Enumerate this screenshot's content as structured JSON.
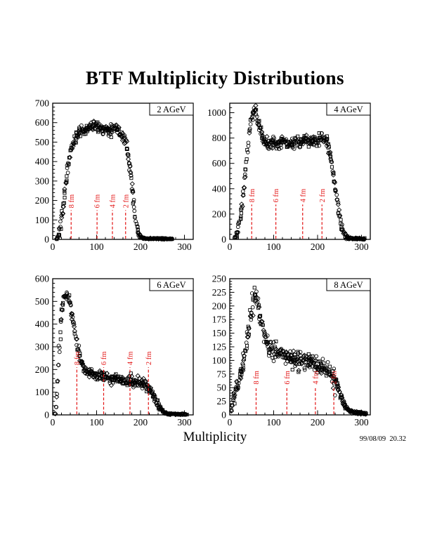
{
  "page": {
    "title": "BTF Multiplicity Distributions",
    "x_axis_label": "Multiplicity",
    "timestamp": "99/08/09  20.32"
  },
  "colors": {
    "marker": "#000000",
    "frame": "#000000",
    "impact_line": "#e31414",
    "background": "#ffffff"
  },
  "chart_data": {
    "type": "scatter",
    "shared_xlabel": "Multiplicity",
    "marker_styles": [
      "circle",
      "square",
      "diamond"
    ],
    "panels": [
      {
        "label": "2 AGeV",
        "position": "top-left",
        "xlim": [
          0,
          320
        ],
        "x_ticks": [
          0,
          100,
          200,
          300
        ],
        "x_minor_step": 20,
        "ylim": [
          0,
          700
        ],
        "y_ticks": [
          0,
          100,
          200,
          300,
          400,
          500,
          600,
          700
        ],
        "y_minor_step": 20,
        "impact_parameter_lines": [
          {
            "label": "8 fm",
            "x": 42
          },
          {
            "label": "6 fm",
            "x": 101
          },
          {
            "label": "4 fm",
            "x": 136
          },
          {
            "label": "2 fm",
            "x": 166
          }
        ],
        "impact_line_top_y": 150,
        "scatter_sigma_y": 13,
        "seed": 7,
        "profile": [
          [
            10,
            4
          ],
          [
            14,
            20
          ],
          [
            18,
            70
          ],
          [
            22,
            140
          ],
          [
            26,
            215
          ],
          [
            30,
            290
          ],
          [
            34,
            360
          ],
          [
            38,
            420
          ],
          [
            42,
            460
          ],
          [
            46,
            490
          ],
          [
            50,
            510
          ],
          [
            55,
            530
          ],
          [
            60,
            548
          ],
          [
            66,
            558
          ],
          [
            72,
            566
          ],
          [
            78,
            572
          ],
          [
            84,
            578
          ],
          [
            90,
            585
          ],
          [
            96,
            595
          ],
          [
            100,
            585
          ],
          [
            106,
            575
          ],
          [
            112,
            568
          ],
          [
            118,
            562
          ],
          [
            124,
            566
          ],
          [
            130,
            560
          ],
          [
            136,
            565
          ],
          [
            142,
            570
          ],
          [
            148,
            562
          ],
          [
            154,
            548
          ],
          [
            160,
            532
          ],
          [
            164,
            510
          ],
          [
            168,
            478
          ],
          [
            172,
            430
          ],
          [
            176,
            365
          ],
          [
            180,
            280
          ],
          [
            184,
            195
          ],
          [
            188,
            120
          ],
          [
            192,
            65
          ],
          [
            196,
            32
          ],
          [
            200,
            14
          ],
          [
            205,
            7
          ],
          [
            212,
            5
          ],
          [
            222,
            4
          ],
          [
            232,
            4
          ],
          [
            242,
            3
          ],
          [
            252,
            3
          ],
          [
            262,
            2
          ],
          [
            272,
            2
          ]
        ]
      },
      {
        "label": "4 AGeV",
        "position": "top-right",
        "xlim": [
          0,
          320
        ],
        "x_ticks": [
          0,
          100,
          200,
          300
        ],
        "x_minor_step": 20,
        "ylim": [
          0,
          1075
        ],
        "y_ticks": [
          0,
          200,
          400,
          600,
          800,
          1000
        ],
        "y_minor_step": 40,
        "impact_parameter_lines": [
          {
            "label": "8 fm",
            "x": 50
          },
          {
            "label": "6 fm",
            "x": 105
          },
          {
            "label": "4 fm",
            "x": 166
          },
          {
            "label": "2 fm",
            "x": 210
          }
        ],
        "impact_line_top_y": 275,
        "scatter_sigma_y": 22,
        "seed": 13,
        "profile": [
          [
            12,
            8
          ],
          [
            16,
            35
          ],
          [
            20,
            90
          ],
          [
            24,
            170
          ],
          [
            28,
            270
          ],
          [
            32,
            395
          ],
          [
            36,
            540
          ],
          [
            40,
            690
          ],
          [
            44,
            820
          ],
          [
            48,
            925
          ],
          [
            52,
            985
          ],
          [
            55,
            1010
          ],
          [
            58,
            1015
          ],
          [
            61,
            985
          ],
          [
            64,
            935
          ],
          [
            68,
            880
          ],
          [
            72,
            840
          ],
          [
            76,
            805
          ],
          [
            80,
            780
          ],
          [
            85,
            760
          ],
          [
            90,
            752
          ],
          [
            95,
            765
          ],
          [
            100,
            775
          ],
          [
            105,
            760
          ],
          [
            110,
            748
          ],
          [
            115,
            765
          ],
          [
            120,
            782
          ],
          [
            125,
            770
          ],
          [
            130,
            752
          ],
          [
            135,
            742
          ],
          [
            140,
            755
          ],
          [
            145,
            772
          ],
          [
            150,
            782
          ],
          [
            155,
            775
          ],
          [
            160,
            762
          ],
          [
            165,
            775
          ],
          [
            170,
            792
          ],
          [
            175,
            785
          ],
          [
            180,
            772
          ],
          [
            185,
            765
          ],
          [
            190,
            762
          ],
          [
            195,
            775
          ],
          [
            200,
            782
          ],
          [
            205,
            792
          ],
          [
            210,
            802
          ],
          [
            214,
            810
          ],
          [
            218,
            798
          ],
          [
            222,
            768
          ],
          [
            226,
            718
          ],
          [
            230,
            648
          ],
          [
            234,
            558
          ],
          [
            238,
            458
          ],
          [
            242,
            355
          ],
          [
            246,
            255
          ],
          [
            250,
            172
          ],
          [
            254,
            105
          ],
          [
            258,
            58
          ],
          [
            262,
            32
          ],
          [
            266,
            18
          ],
          [
            270,
            11
          ],
          [
            276,
            7
          ],
          [
            284,
            5
          ],
          [
            294,
            4
          ],
          [
            306,
            3
          ]
        ]
      },
      {
        "label": "6 AGeV",
        "position": "bottom-left",
        "xlim": [
          0,
          320
        ],
        "x_ticks": [
          0,
          100,
          200,
          300
        ],
        "x_minor_step": 20,
        "ylim": [
          0,
          600
        ],
        "y_ticks": [
          0,
          100,
          200,
          300,
          400,
          500,
          600
        ],
        "y_minor_step": 20,
        "impact_parameter_lines": [
          {
            "label": "8 fm",
            "x": 55
          },
          {
            "label": "6 fm",
            "x": 116
          },
          {
            "label": "4 fm",
            "x": 176
          },
          {
            "label": "2 fm",
            "x": 218
          }
        ],
        "impact_line_top_y": 210,
        "scatter_sigma_y": 11,
        "seed": 23,
        "profile": [
          [
            5,
            8
          ],
          [
            8,
            55
          ],
          [
            11,
            145
          ],
          [
            14,
            255
          ],
          [
            17,
            355
          ],
          [
            20,
            435
          ],
          [
            23,
            488
          ],
          [
            26,
            518
          ],
          [
            29,
            533
          ],
          [
            32,
            528
          ],
          [
            35,
            513
          ],
          [
            38,
            494
          ],
          [
            41,
            470
          ],
          [
            44,
            444
          ],
          [
            47,
            415
          ],
          [
            50,
            380
          ],
          [
            53,
            345
          ],
          [
            56,
            310
          ],
          [
            60,
            275
          ],
          [
            64,
            246
          ],
          [
            68,
            224
          ],
          [
            72,
            207
          ],
          [
            76,
            196
          ],
          [
            80,
            188
          ],
          [
            85,
            182
          ],
          [
            90,
            177
          ],
          [
            95,
            174
          ],
          [
            100,
            172
          ],
          [
            105,
            171
          ],
          [
            110,
            172
          ],
          [
            115,
            168
          ],
          [
            120,
            165
          ],
          [
            125,
            163
          ],
          [
            130,
            161
          ],
          [
            138,
            158
          ],
          [
            146,
            156
          ],
          [
            154,
            153
          ],
          [
            162,
            150
          ],
          [
            170,
            148
          ],
          [
            178,
            146
          ],
          [
            186,
            143
          ],
          [
            194,
            141
          ],
          [
            202,
            139
          ],
          [
            208,
            135
          ],
          [
            214,
            128
          ],
          [
            220,
            115
          ],
          [
            225,
            99
          ],
          [
            230,
            80
          ],
          [
            235,
            61
          ],
          [
            240,
            44
          ],
          [
            245,
            29
          ],
          [
            250,
            17
          ],
          [
            255,
            10
          ],
          [
            260,
            6
          ],
          [
            268,
            4
          ],
          [
            278,
            3
          ],
          [
            290,
            3
          ],
          [
            305,
            2
          ]
        ]
      },
      {
        "label": "8 AGeV",
        "position": "bottom-right",
        "xlim": [
          0,
          320
        ],
        "x_ticks": [
          0,
          100,
          200,
          300
        ],
        "x_minor_step": 20,
        "ylim": [
          0,
          250
        ],
        "y_ticks": [
          0,
          25,
          50,
          75,
          100,
          125,
          150,
          175,
          200,
          225,
          250
        ],
        "y_minor_step": 5,
        "impact_parameter_lines": [
          {
            "label": "8 fm",
            "x": 60
          },
          {
            "label": "6 fm",
            "x": 130
          },
          {
            "label": "4 fm",
            "x": 195
          },
          {
            "label": "2 fm",
            "x": 237
          }
        ],
        "impact_line_top_y": 52,
        "scatter_sigma_y": 8,
        "seed": 41,
        "profile": [
          [
            4,
            8
          ],
          [
            7,
            22
          ],
          [
            10,
            38
          ],
          [
            13,
            42
          ],
          [
            16,
            50
          ],
          [
            19,
            56
          ],
          [
            22,
            63
          ],
          [
            25,
            72
          ],
          [
            28,
            82
          ],
          [
            31,
            95
          ],
          [
            34,
            110
          ],
          [
            37,
            125
          ],
          [
            40,
            140
          ],
          [
            43,
            156
          ],
          [
            46,
            172
          ],
          [
            49,
            188
          ],
          [
            52,
            202
          ],
          [
            55,
            213
          ],
          [
            58,
            221
          ],
          [
            61,
            215
          ],
          [
            64,
            202
          ],
          [
            67,
            188
          ],
          [
            70,
            175
          ],
          [
            73,
            163
          ],
          [
            76,
            152
          ],
          [
            80,
            142
          ],
          [
            84,
            134
          ],
          [
            88,
            127
          ],
          [
            92,
            122
          ],
          [
            96,
            118
          ],
          [
            100,
            115
          ],
          [
            106,
            112
          ],
          [
            112,
            110
          ],
          [
            118,
            111
          ],
          [
            124,
            109
          ],
          [
            130,
            108
          ],
          [
            136,
            106
          ],
          [
            142,
            105
          ],
          [
            148,
            103
          ],
          [
            154,
            102
          ],
          [
            160,
            100
          ],
          [
            166,
            99
          ],
          [
            172,
            98
          ],
          [
            178,
            97
          ],
          [
            184,
            95
          ],
          [
            190,
            94
          ],
          [
            196,
            92
          ],
          [
            202,
            90
          ],
          [
            208,
            88
          ],
          [
            214,
            86
          ],
          [
            220,
            83
          ],
          [
            226,
            79
          ],
          [
            232,
            73
          ],
          [
            238,
            64
          ],
          [
            244,
            54
          ],
          [
            250,
            42
          ],
          [
            255,
            31
          ],
          [
            260,
            21
          ],
          [
            265,
            14
          ],
          [
            270,
            9
          ],
          [
            276,
            6
          ],
          [
            285,
            4
          ],
          [
            298,
            3
          ],
          [
            310,
            2
          ]
        ]
      }
    ]
  }
}
